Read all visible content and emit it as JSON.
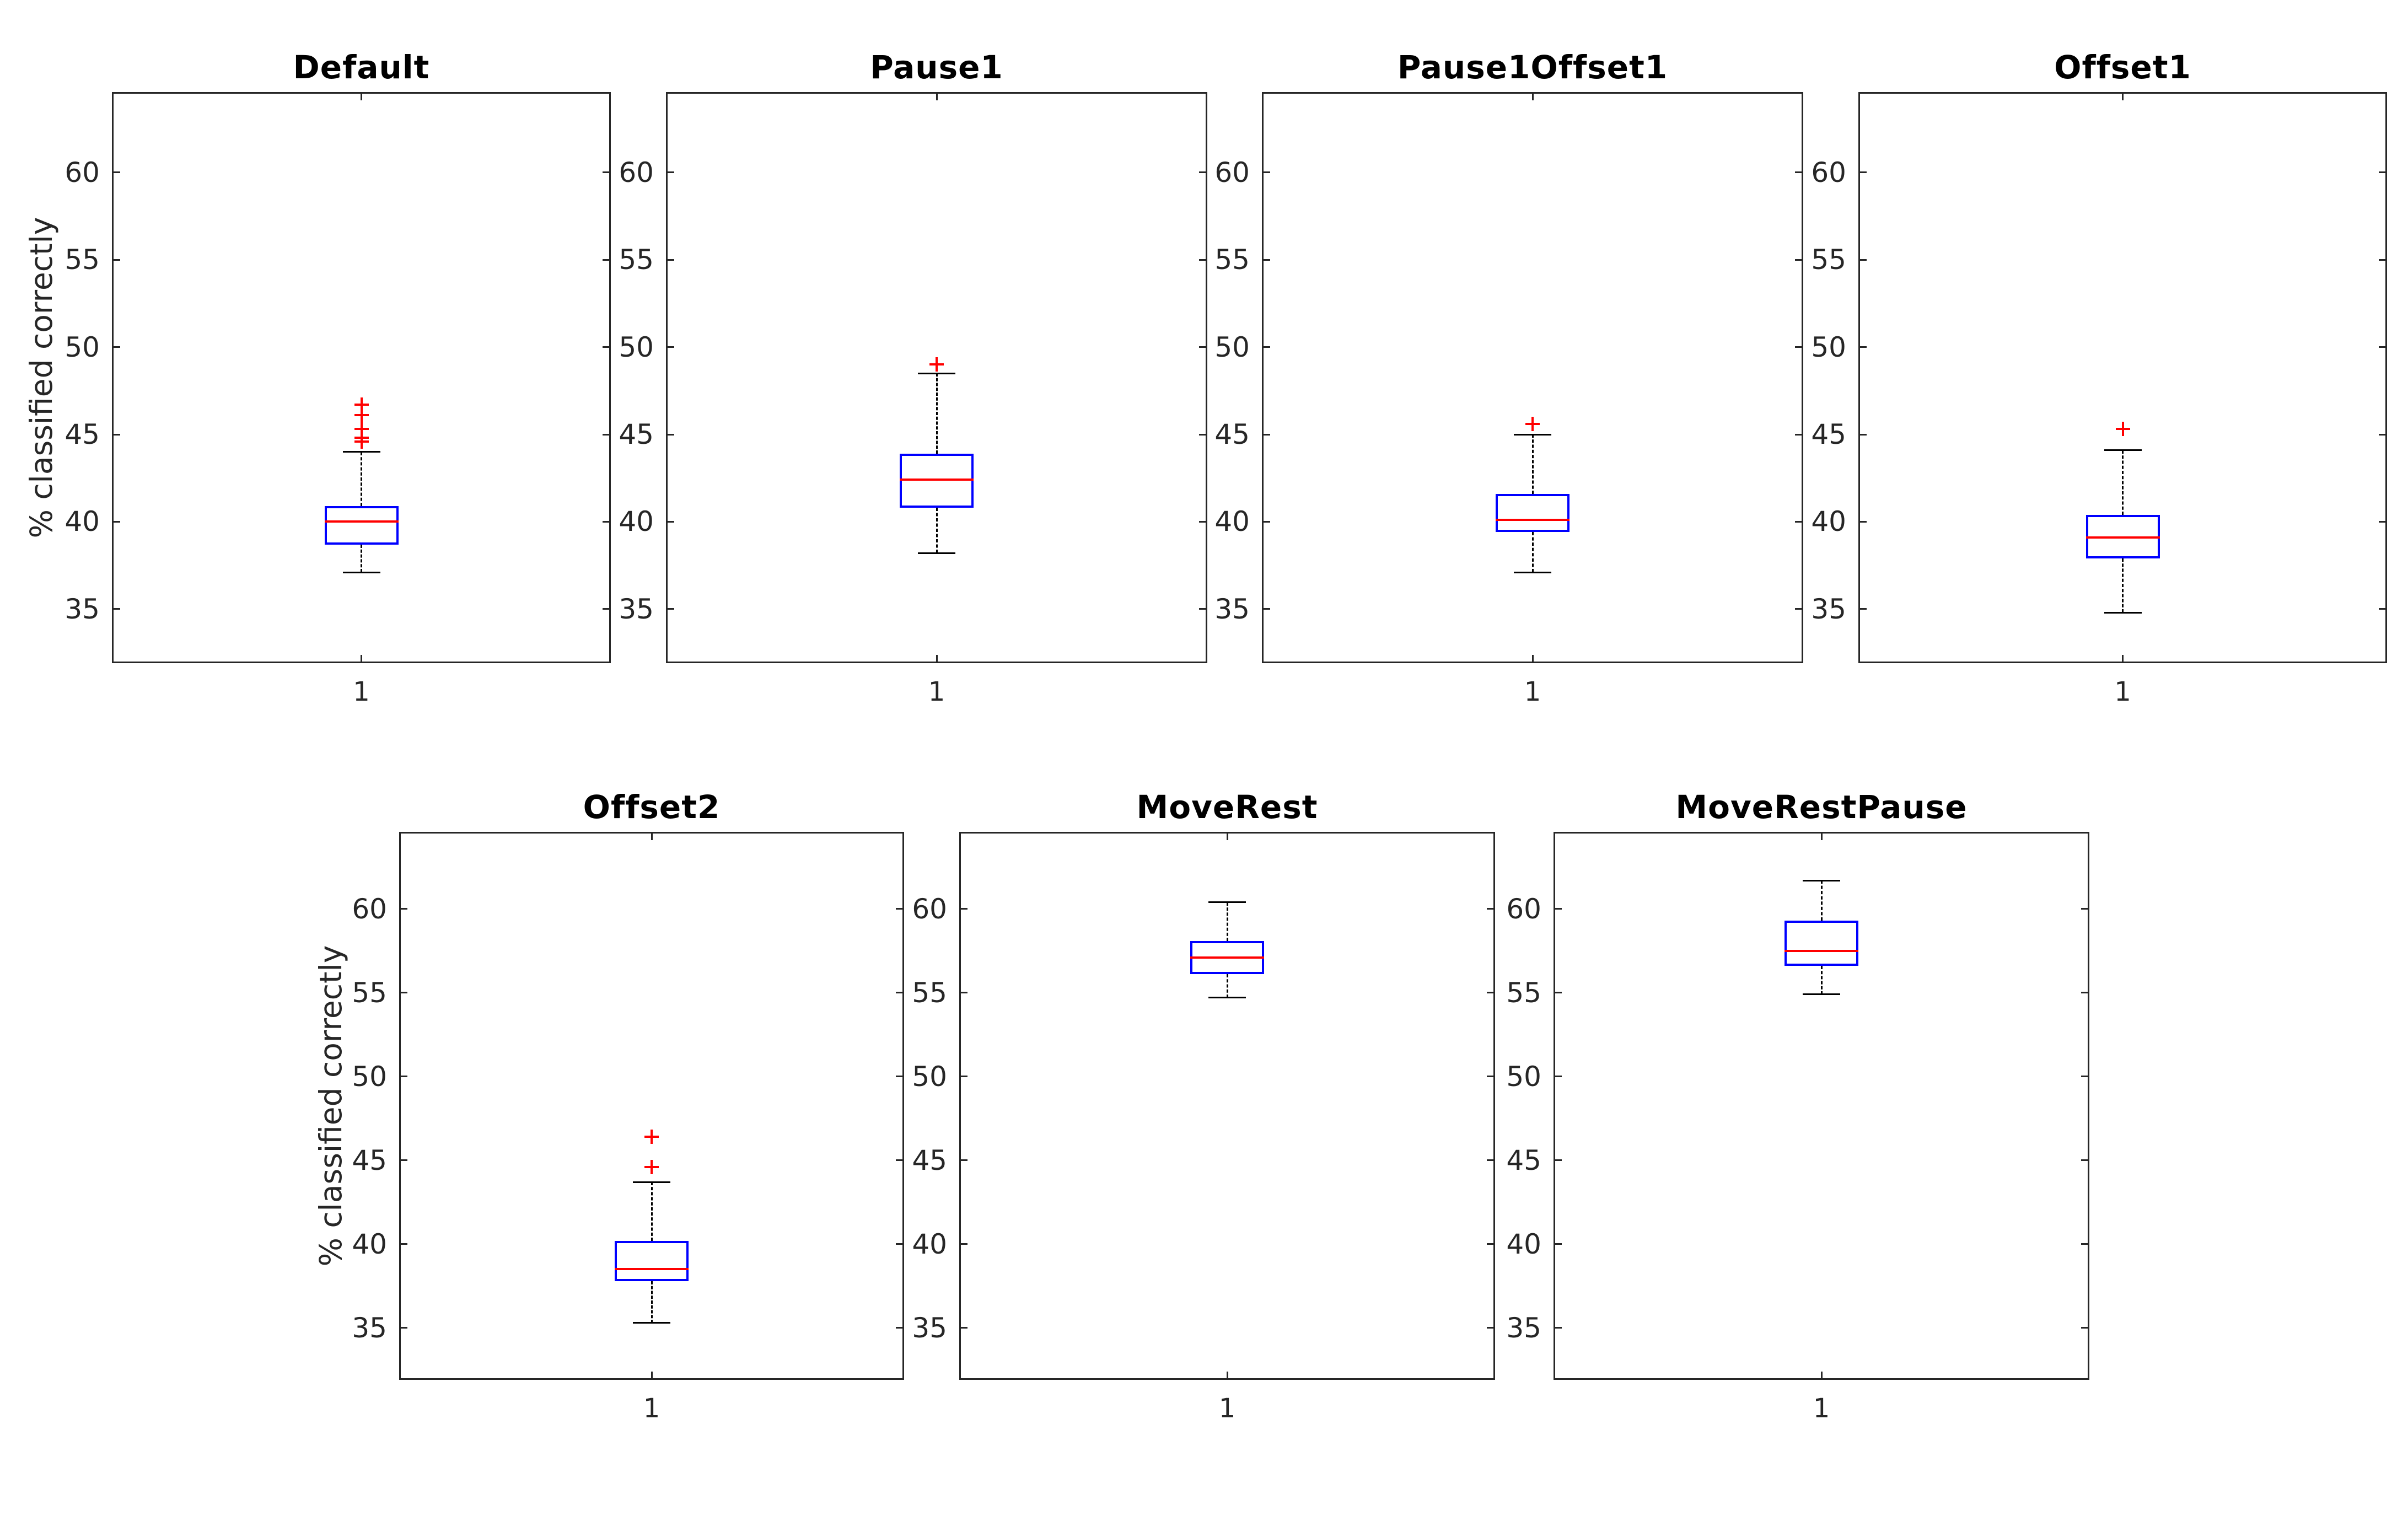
{
  "figure": {
    "background": "#ffffff"
  },
  "colors": {
    "box_edge": "#0000ff",
    "median": "#ff0000",
    "whisker": "#000000",
    "cap": "#000000",
    "outlier": "#ff0000",
    "axis": "#262626",
    "tick_label": "#262626",
    "title_text": "#000000"
  },
  "chart_data": {
    "type": "box",
    "ylabel": "% classified correctly",
    "x_tick_label": "1",
    "yticks": [
      35,
      40,
      45,
      50,
      55,
      60
    ],
    "ylim": [
      32,
      64.5
    ],
    "grid": false,
    "legend": null,
    "layout": {
      "rows": 2,
      "row1_panels": 4,
      "row2_panels": 3
    },
    "panels": [
      {
        "title": "Default",
        "median": 40.0,
        "q1": 38.7,
        "q3": 40.9,
        "whisker_low": 37.1,
        "whisker_high": 44.0,
        "outliers": [
          44.6,
          44.8,
          45.3,
          46.1,
          46.7
        ]
      },
      {
        "title": "Pause1",
        "median": 42.4,
        "q1": 40.8,
        "q3": 43.9,
        "whisker_low": 38.2,
        "whisker_high": 48.5,
        "outliers": [
          49.0
        ]
      },
      {
        "title": "Pause1Offset1",
        "median": 40.1,
        "q1": 39.4,
        "q3": 41.6,
        "whisker_low": 37.1,
        "whisker_high": 45.0,
        "outliers": [
          45.6
        ]
      },
      {
        "title": "Offset1",
        "median": 39.1,
        "q1": 37.9,
        "q3": 40.4,
        "whisker_low": 34.8,
        "whisker_high": 44.1,
        "outliers": [
          45.3
        ]
      },
      {
        "title": "Offset2",
        "median": 38.5,
        "q1": 37.8,
        "q3": 40.2,
        "whisker_low": 35.3,
        "whisker_high": 43.7,
        "outliers": [
          44.6,
          46.4
        ]
      },
      {
        "title": "MoveRest",
        "median": 57.1,
        "q1": 56.1,
        "q3": 58.1,
        "whisker_low": 54.7,
        "whisker_high": 60.4,
        "outliers": []
      },
      {
        "title": "MoveRestPause",
        "median": 57.5,
        "q1": 56.6,
        "q3": 59.3,
        "whisker_low": 54.9,
        "whisker_high": 61.7,
        "outliers": []
      }
    ]
  }
}
